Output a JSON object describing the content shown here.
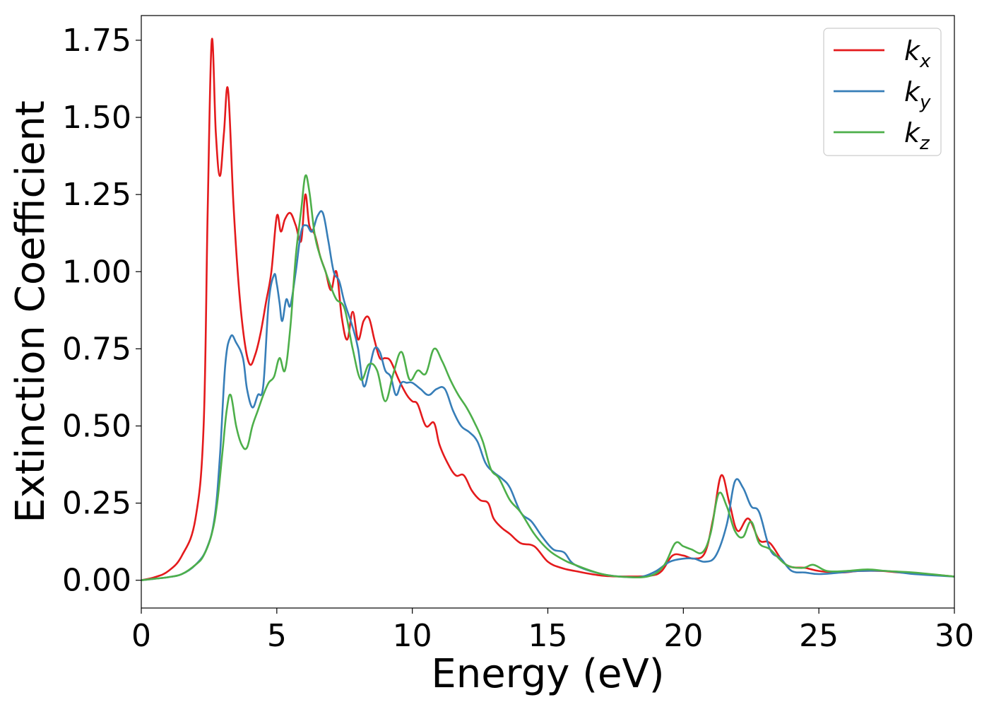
{
  "chart_data": {
    "type": "line",
    "title": "",
    "xlabel": "Energy (eV)",
    "ylabel": "Extinction Coefficient",
    "xlim": [
      0,
      30
    ],
    "ylim": [
      -0.09,
      1.83
    ],
    "xticks": [
      0,
      5,
      10,
      15,
      20,
      25,
      30
    ],
    "xtick_labels": [
      "0",
      "5",
      "10",
      "15",
      "20",
      "25",
      "30"
    ],
    "yticks": [
      0,
      0.25,
      0.5,
      0.75,
      1.0,
      1.25,
      1.5,
      1.75
    ],
    "ytick_labels": [
      "0.00",
      "0.25",
      "0.50",
      "0.75",
      "1.00",
      "1.25",
      "1.50",
      "1.75"
    ],
    "grid": false,
    "legend": {
      "position": "top-right"
    },
    "series": [
      {
        "name": "k_x",
        "label_main": "k",
        "label_sub": "x",
        "color": "#e41a1c",
        "x": [
          0,
          0.5,
          1.0,
          1.5,
          2.0,
          2.3,
          2.45,
          2.6,
          2.75,
          2.9,
          3.05,
          3.2,
          3.4,
          3.6,
          3.8,
          4.0,
          4.2,
          4.4,
          4.6,
          4.8,
          5.0,
          5.15,
          5.3,
          5.5,
          5.7,
          5.9,
          6.05,
          6.2,
          6.4,
          6.6,
          6.8,
          7.0,
          7.2,
          7.4,
          7.6,
          7.8,
          8.0,
          8.2,
          8.4,
          8.6,
          8.8,
          9.0,
          9.2,
          9.5,
          9.8,
          10.0,
          10.2,
          10.5,
          10.8,
          11.0,
          11.3,
          11.6,
          11.9,
          12.2,
          12.5,
          12.8,
          13.0,
          13.3,
          13.6,
          14.0,
          14.5,
          15.0,
          15.5,
          16.0,
          17.0,
          18.0,
          18.8,
          19.2,
          19.6,
          20.0,
          20.4,
          20.8,
          21.1,
          21.4,
          21.7,
          22.0,
          22.4,
          22.8,
          23.2,
          23.8,
          24.5,
          25.0,
          25.8,
          26.5,
          27.3,
          28.0,
          29.0,
          30.0
        ],
        "y": [
          0.0,
          0.01,
          0.03,
          0.08,
          0.2,
          0.5,
          1.2,
          1.75,
          1.45,
          1.31,
          1.45,
          1.59,
          1.22,
          0.95,
          0.78,
          0.7,
          0.73,
          0.8,
          0.9,
          1.0,
          1.18,
          1.13,
          1.17,
          1.19,
          1.15,
          1.1,
          1.25,
          1.15,
          1.12,
          1.05,
          1.0,
          0.94,
          1.0,
          0.85,
          0.78,
          0.87,
          0.78,
          0.84,
          0.85,
          0.78,
          0.72,
          0.72,
          0.71,
          0.65,
          0.6,
          0.58,
          0.57,
          0.5,
          0.51,
          0.44,
          0.38,
          0.34,
          0.34,
          0.29,
          0.26,
          0.25,
          0.2,
          0.17,
          0.15,
          0.12,
          0.11,
          0.06,
          0.04,
          0.03,
          0.015,
          0.012,
          0.015,
          0.03,
          0.08,
          0.08,
          0.07,
          0.09,
          0.2,
          0.34,
          0.25,
          0.16,
          0.2,
          0.13,
          0.12,
          0.05,
          0.04,
          0.03,
          0.025,
          0.03,
          0.03,
          0.025,
          0.02,
          0.012
        ]
      },
      {
        "name": "k_y",
        "label_main": "k",
        "label_sub": "y",
        "color": "#377eb8",
        "x": [
          0,
          0.5,
          1.0,
          1.5,
          2.0,
          2.4,
          2.7,
          2.9,
          3.1,
          3.3,
          3.5,
          3.75,
          3.9,
          4.1,
          4.3,
          4.5,
          4.7,
          4.9,
          5.0,
          5.1,
          5.2,
          5.35,
          5.5,
          5.7,
          5.9,
          6.1,
          6.3,
          6.5,
          6.7,
          6.9,
          7.1,
          7.3,
          7.5,
          7.8,
          8.0,
          8.2,
          8.4,
          8.6,
          8.8,
          9.0,
          9.2,
          9.4,
          9.6,
          9.8,
          10.0,
          10.3,
          10.6,
          10.9,
          11.2,
          11.5,
          11.8,
          12.1,
          12.4,
          12.7,
          13.0,
          13.3,
          13.6,
          14.0,
          14.4,
          14.8,
          15.2,
          15.6,
          16.0,
          17.0,
          18.0,
          18.5,
          19.0,
          19.5,
          20.0,
          20.4,
          20.8,
          21.2,
          21.6,
          21.9,
          22.2,
          22.5,
          22.8,
          23.2,
          23.6,
          24.0,
          24.5,
          25.0,
          25.8,
          26.5,
          27.5,
          28.5,
          30.0
        ],
        "y": [
          0.0,
          0.005,
          0.01,
          0.02,
          0.05,
          0.1,
          0.2,
          0.4,
          0.7,
          0.79,
          0.77,
          0.72,
          0.62,
          0.56,
          0.6,
          0.63,
          0.9,
          0.99,
          0.96,
          0.9,
          0.84,
          0.91,
          0.89,
          1.0,
          1.13,
          1.15,
          1.13,
          1.18,
          1.19,
          1.1,
          1.0,
          0.97,
          0.9,
          0.82,
          0.75,
          0.63,
          0.68,
          0.75,
          0.74,
          0.68,
          0.66,
          0.6,
          0.64,
          0.64,
          0.64,
          0.62,
          0.6,
          0.62,
          0.62,
          0.55,
          0.5,
          0.48,
          0.45,
          0.38,
          0.35,
          0.33,
          0.3,
          0.22,
          0.19,
          0.14,
          0.1,
          0.09,
          0.05,
          0.02,
          0.01,
          0.012,
          0.03,
          0.06,
          0.07,
          0.07,
          0.06,
          0.08,
          0.18,
          0.32,
          0.3,
          0.24,
          0.22,
          0.1,
          0.07,
          0.03,
          0.025,
          0.02,
          0.025,
          0.03,
          0.03,
          0.02,
          0.012
        ]
      },
      {
        "name": "k_z",
        "label_main": "k",
        "label_sub": "z",
        "color": "#4daf4a",
        "x": [
          0,
          0.5,
          1.0,
          1.5,
          2.0,
          2.3,
          2.6,
          2.8,
          3.0,
          3.15,
          3.3,
          3.5,
          3.7,
          3.9,
          4.1,
          4.3,
          4.5,
          4.7,
          4.9,
          5.1,
          5.3,
          5.5,
          5.7,
          5.9,
          6.05,
          6.2,
          6.4,
          6.6,
          6.8,
          7.0,
          7.2,
          7.5,
          7.8,
          8.1,
          8.4,
          8.7,
          9.0,
          9.3,
          9.6,
          9.9,
          10.2,
          10.5,
          10.8,
          11.1,
          11.4,
          11.7,
          12.0,
          12.3,
          12.6,
          12.9,
          13.2,
          13.6,
          14.0,
          14.5,
          15.0,
          15.5,
          16.0,
          17.0,
          18.0,
          18.8,
          19.3,
          19.7,
          20.0,
          20.3,
          20.7,
          21.0,
          21.3,
          21.6,
          21.9,
          22.2,
          22.5,
          22.8,
          23.2,
          23.8,
          24.4,
          24.8,
          25.3,
          26.0,
          26.8,
          27.5,
          28.5,
          30.0
        ],
        "y": [
          0.0,
          0.005,
          0.01,
          0.02,
          0.05,
          0.08,
          0.15,
          0.25,
          0.42,
          0.55,
          0.6,
          0.5,
          0.44,
          0.43,
          0.5,
          0.55,
          0.6,
          0.64,
          0.66,
          0.72,
          0.68,
          0.82,
          1.05,
          1.2,
          1.31,
          1.26,
          1.12,
          1.05,
          1.0,
          0.95,
          0.91,
          0.88,
          0.75,
          0.65,
          0.7,
          0.68,
          0.58,
          0.67,
          0.74,
          0.65,
          0.68,
          0.67,
          0.75,
          0.71,
          0.65,
          0.6,
          0.56,
          0.51,
          0.45,
          0.36,
          0.33,
          0.26,
          0.22,
          0.15,
          0.1,
          0.07,
          0.05,
          0.02,
          0.01,
          0.015,
          0.05,
          0.12,
          0.11,
          0.1,
          0.09,
          0.15,
          0.28,
          0.24,
          0.16,
          0.14,
          0.19,
          0.12,
          0.1,
          0.05,
          0.04,
          0.05,
          0.03,
          0.03,
          0.035,
          0.03,
          0.025,
          0.012
        ]
      }
    ]
  }
}
